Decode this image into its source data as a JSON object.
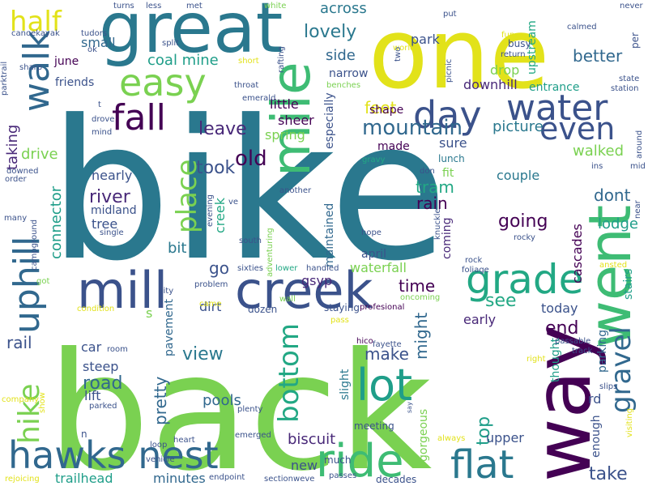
{
  "palette": {
    "yellow": "#e2e21a",
    "lime": "#7ad151",
    "green": "#3ebc74",
    "teal_green": "#22a884",
    "teal": "#1f9e89",
    "blue_teal": "#2a788e",
    "blue": "#31688e",
    "indigo": "#3b528b",
    "purple": "#482878",
    "dark_purple": "#440154",
    "background": "#ffffff"
  },
  "words": [
    {
      "id": "bike",
      "text": "bike",
      "color": "#2a788e"
    },
    {
      "id": "back",
      "text": "back",
      "color": "#7ad151"
    },
    {
      "id": "one",
      "text": "one",
      "color": "#e2e21a"
    },
    {
      "id": "great",
      "text": "great",
      "color": "#2a788e"
    },
    {
      "id": "way",
      "text": "way",
      "color": "#440154"
    },
    {
      "id": "mill",
      "text": "mill",
      "color": "#3b528b"
    },
    {
      "id": "creek",
      "text": "creek",
      "color": "#3b528b"
    },
    {
      "id": "went",
      "text": "went",
      "color": "#3ebc74"
    },
    {
      "id": "mile",
      "text": "mile",
      "color": "#3ebc74"
    },
    {
      "id": "hawks-nest",
      "text": "hawks nest",
      "color": "#31688e"
    },
    {
      "id": "ride",
      "text": "ride",
      "color": "#3ebc74"
    },
    {
      "id": "water",
      "text": "water",
      "color": "#3b528b"
    },
    {
      "id": "day",
      "text": "day",
      "color": "#3b528b"
    },
    {
      "id": "easy",
      "text": "easy",
      "color": "#7ad151"
    },
    {
      "id": "grade",
      "text": "grade",
      "color": "#22a884"
    },
    {
      "id": "lot",
      "text": "lot",
      "color": "#1f9e89"
    },
    {
      "id": "flat",
      "text": "flat",
      "color": "#2a788e"
    },
    {
      "id": "uphill",
      "text": "uphill",
      "color": "#31688e"
    },
    {
      "id": "walk",
      "text": "walk",
      "color": "#31688e"
    },
    {
      "id": "fall",
      "text": "fall",
      "color": "#440154"
    },
    {
      "id": "even",
      "text": "even",
      "color": "#3b528b"
    },
    {
      "id": "half",
      "text": "half",
      "color": "#e2e21a"
    },
    {
      "id": "hike",
      "text": "hike",
      "color": "#7ad151"
    },
    {
      "id": "gravel",
      "text": "gravel",
      "color": "#31688e"
    },
    {
      "id": "bottom",
      "text": "bottom",
      "color": "#22a884"
    },
    {
      "id": "place",
      "text": "place",
      "color": "#7ad151"
    },
    {
      "id": "mountain",
      "text": "mountain",
      "color": "#31688e"
    },
    {
      "id": "going",
      "text": "going",
      "color": "#440154"
    },
    {
      "id": "old",
      "text": "old",
      "color": "#440154"
    },
    {
      "id": "river",
      "text": "river",
      "color": "#482878"
    },
    {
      "id": "leave",
      "text": "leave",
      "color": "#482878"
    },
    {
      "id": "took",
      "text": "took",
      "color": "#3b528b"
    },
    {
      "id": "lovely",
      "text": "lovely",
      "color": "#2a788e"
    },
    {
      "id": "across",
      "text": "across",
      "color": "#2a788e"
    },
    {
      "id": "side",
      "text": "side",
      "color": "#31688e"
    },
    {
      "id": "better",
      "text": "better",
      "color": "#31688e"
    },
    {
      "id": "coal-mine",
      "text": "coal mine",
      "color": "#1f9e89"
    },
    {
      "id": "feet",
      "text": "feet",
      "color": "#e2e21a"
    },
    {
      "id": "picture",
      "text": "picture",
      "color": "#2a788e"
    },
    {
      "id": "walked",
      "text": "walked",
      "color": "#7ad151"
    },
    {
      "id": "dont",
      "text": "dont",
      "color": "#31688e"
    },
    {
      "id": "lodge",
      "text": "lodge",
      "color": "#1f9e89"
    },
    {
      "id": "tram",
      "text": "tram",
      "color": "#22a884"
    },
    {
      "id": "rain",
      "text": "rain",
      "color": "#440154"
    },
    {
      "id": "time",
      "text": "time",
      "color": "#440154"
    },
    {
      "id": "see",
      "text": "see",
      "color": "#22a884"
    },
    {
      "id": "end",
      "text": "end",
      "color": "#440154"
    },
    {
      "id": "make",
      "text": "make",
      "color": "#3b528b"
    },
    {
      "id": "view",
      "text": "view",
      "color": "#2a788e"
    },
    {
      "id": "road",
      "text": "road",
      "color": "#31688e"
    },
    {
      "id": "rail",
      "text": "rail",
      "color": "#3b528b"
    },
    {
      "id": "pretty",
      "text": "pretty",
      "color": "#31688e"
    },
    {
      "id": "biscuit",
      "text": "biscuit",
      "color": "#482878"
    },
    {
      "id": "take",
      "text": "take",
      "color": "#3b528b"
    },
    {
      "id": "top",
      "text": "top",
      "color": "#1f9e89"
    },
    {
      "id": "pools",
      "text": "pools",
      "color": "#31688e"
    },
    {
      "id": "might",
      "text": "might",
      "color": "#31688e"
    },
    {
      "id": "connector",
      "text": "connector",
      "color": "#1f9e89"
    },
    {
      "id": "taking",
      "text": "taking",
      "color": "#482878"
    },
    {
      "id": "drive",
      "text": "drive",
      "color": "#7ad151"
    },
    {
      "id": "walk-small",
      "text": "small",
      "color": "#31688e"
    },
    {
      "id": "june",
      "text": "june",
      "color": "#440154"
    },
    {
      "id": "friends",
      "text": "friends",
      "color": "#3b528b"
    },
    {
      "id": "park",
      "text": "park",
      "color": "#3b528b"
    },
    {
      "id": "narrow",
      "text": "narrow",
      "color": "#3b528b"
    },
    {
      "id": "shape",
      "text": "shape",
      "color": "#440154"
    },
    {
      "id": "drop",
      "text": "drop",
      "color": "#7ad151"
    },
    {
      "id": "downhill",
      "text": "downhill",
      "color": "#482878"
    },
    {
      "id": "entrance",
      "text": "entrance",
      "color": "#1f9e89"
    },
    {
      "id": "upstream",
      "text": "upstream",
      "color": "#22a884"
    },
    {
      "id": "little",
      "text": "little",
      "color": "#440154"
    },
    {
      "id": "sheer",
      "text": "sheer",
      "color": "#440154"
    },
    {
      "id": "spring",
      "text": "spring",
      "color": "#7ad151"
    },
    {
      "id": "made",
      "text": "made",
      "color": "#440154"
    },
    {
      "id": "sure",
      "text": "sure",
      "color": "#3b528b"
    },
    {
      "id": "fit",
      "text": "fit",
      "color": "#7ad151"
    },
    {
      "id": "couple",
      "text": "couple",
      "color": "#2a788e"
    },
    {
      "id": "nearly",
      "text": "nearly",
      "color": "#3b528b"
    },
    {
      "id": "midland",
      "text": "midland",
      "color": "#3b528b"
    },
    {
      "id": "tree",
      "text": "tree",
      "color": "#3b528b"
    },
    {
      "id": "bit",
      "text": "bit",
      "color": "#2a788e"
    },
    {
      "id": "go",
      "text": "go",
      "color": "#3b528b"
    },
    {
      "id": "creek-small",
      "text": "creek",
      "color": "#22a884"
    },
    {
      "id": "dirt",
      "text": "dirt",
      "color": "#3b528b"
    },
    {
      "id": "gsyp",
      "text": "gsyp",
      "color": "#482878"
    },
    {
      "id": "april",
      "text": "april",
      "color": "#3b528b"
    },
    {
      "id": "waterfall",
      "text": "waterfall",
      "color": "#7ad151"
    },
    {
      "id": "coming",
      "text": "coming",
      "color": "#482878"
    },
    {
      "id": "cascades",
      "text": "cascades",
      "color": "#440154"
    },
    {
      "id": "stairs",
      "text": "stairs",
      "color": "#1f9e89"
    },
    {
      "id": "today",
      "text": "today",
      "color": "#3b528b"
    },
    {
      "id": "early",
      "text": "early",
      "color": "#482878"
    },
    {
      "id": "car",
      "text": "car",
      "color": "#3b528b"
    },
    {
      "id": "steep",
      "text": "steep",
      "color": "#3b528b"
    },
    {
      "id": "lift",
      "text": "lift",
      "color": "#3b528b"
    },
    {
      "id": "pavement",
      "text": "pavement",
      "color": "#31688e"
    },
    {
      "id": "thought",
      "text": "thought",
      "color": "#1f9e89"
    },
    {
      "id": "enough",
      "text": "enough",
      "color": "#3b528b"
    },
    {
      "id": "rd",
      "text": "rd",
      "color": "#3b528b"
    },
    {
      "id": "parking",
      "text": "parking",
      "color": "#31688e"
    },
    {
      "id": "trailhead",
      "text": "trailhead",
      "color": "#1f9e89"
    },
    {
      "id": "minutes",
      "text": "minutes",
      "color": "#31688e"
    },
    {
      "id": "new",
      "text": "new",
      "color": "#3b528b"
    },
    {
      "id": "much",
      "text": "much",
      "color": "#3b528b"
    },
    {
      "id": "upper",
      "text": "upper",
      "color": "#3b528b"
    },
    {
      "id": "slight",
      "text": "slight",
      "color": "#2a788e"
    },
    {
      "id": "gorgeous",
      "text": "gorgeous",
      "color": "#7ad151"
    },
    {
      "id": "maintained",
      "text": "maintained",
      "color": "#31688e"
    },
    {
      "id": "especially",
      "text": "especially",
      "color": "#3b528b"
    },
    {
      "id": "lunch",
      "text": "lunch",
      "color": "#2a788e"
    },
    {
      "id": "don",
      "text": "don",
      "color": "#3b528b"
    },
    {
      "id": "gravy",
      "text": "gravy",
      "color": "#22a884"
    },
    {
      "id": "another",
      "text": "another",
      "color": "#3b528b"
    },
    {
      "id": "adventuring",
      "text": "adventuring",
      "color": "#7ad151"
    },
    {
      "id": "sixties",
      "text": "sixties",
      "color": "#3b528b"
    },
    {
      "id": "lower",
      "text": "lower",
      "color": "#22a884"
    },
    {
      "id": "handled",
      "text": "handled",
      "color": "#3b528b"
    },
    {
      "id": "oncoming",
      "text": "oncoming",
      "color": "#7ad151"
    },
    {
      "id": "staying",
      "text": "staying",
      "color": "#3b528b"
    },
    {
      "id": "profesional",
      "text": "profesional",
      "color": "#440154"
    },
    {
      "id": "dozen",
      "text": "dozen",
      "color": "#3b528b"
    },
    {
      "id": "city",
      "text": "city",
      "color": "#3b528b"
    },
    {
      "id": "problem",
      "text": "problem",
      "color": "#3b528b"
    },
    {
      "id": "condition",
      "text": "condition",
      "color": "#e2e21a"
    },
    {
      "id": "room",
      "text": "room",
      "color": "#3b528b"
    },
    {
      "id": "show",
      "text": "show",
      "color": "#e2e21a"
    },
    {
      "id": "company",
      "text": "company",
      "color": "#e2e21a"
    },
    {
      "id": "parked",
      "text": "parked",
      "color": "#3b528b"
    },
    {
      "id": "heart",
      "text": "heart",
      "color": "#3b528b"
    },
    {
      "id": "loop",
      "text": "loop",
      "color": "#3b528b"
    },
    {
      "id": "vehicle",
      "text": "vehicle",
      "color": "#3b528b"
    },
    {
      "id": "rejoicing",
      "text": "rejoicing",
      "color": "#e2e21a"
    },
    {
      "id": "endpoint",
      "text": "endpoint",
      "color": "#3b528b"
    },
    {
      "id": "sectionweve",
      "text": "sectionweve",
      "color": "#3b528b"
    },
    {
      "id": "passes",
      "text": "passes",
      "color": "#3b528b"
    },
    {
      "id": "decades",
      "text": "decades",
      "color": "#3b528b"
    },
    {
      "id": "plenty",
      "text": "plenty",
      "color": "#3b528b"
    },
    {
      "id": "emerged",
      "text": "emerged",
      "color": "#3b528b"
    },
    {
      "id": "meeting",
      "text": "meeting",
      "color": "#3b528b"
    },
    {
      "id": "always",
      "text": "always",
      "color": "#e2e21a"
    },
    {
      "id": "hico",
      "text": "hico",
      "color": "#440154"
    },
    {
      "id": "fayette",
      "text": "fayette",
      "color": "#3b528b"
    },
    {
      "id": "passable",
      "text": "passable",
      "color": "#3b528b"
    },
    {
      "id": "track",
      "text": "track",
      "color": "#3b528b"
    },
    {
      "id": "right",
      "text": "right",
      "color": "#e2e21a"
    },
    {
      "id": "slips",
      "text": "slips",
      "color": "#3b528b"
    },
    {
      "id": "visiting",
      "text": "visiting",
      "color": "#e2e21a"
    },
    {
      "id": "say",
      "text": "say",
      "color": "#3b528b"
    },
    {
      "id": "n",
      "text": "n",
      "color": "#3b528b"
    },
    {
      "id": "pass",
      "text": "pass",
      "color": "#e2e21a"
    },
    {
      "id": "wall",
      "text": "wall",
      "color": "#7ad151"
    },
    {
      "id": "came",
      "text": "came",
      "color": "#e2e21a"
    },
    {
      "id": "got",
      "text": "got",
      "color": "#7ad151"
    },
    {
      "id": "s",
      "text": "s",
      "color": "#7ad151"
    },
    {
      "id": "campground",
      "text": "campground",
      "color": "#3b528b"
    },
    {
      "id": "many",
      "text": "many",
      "color": "#3b528b"
    },
    {
      "id": "single",
      "text": "single",
      "color": "#3b528b"
    },
    {
      "id": "south",
      "text": "south",
      "color": "#3b528b"
    },
    {
      "id": "ve",
      "text": "ve",
      "color": "#3b528b"
    },
    {
      "id": "evening",
      "text": "evening",
      "color": "#3b528b"
    },
    {
      "id": "hope",
      "text": "hope",
      "color": "#3b528b"
    },
    {
      "id": "knuckle",
      "text": "knuckle",
      "color": "#3b528b"
    },
    {
      "id": "rock",
      "text": "rock",
      "color": "#3b528b"
    },
    {
      "id": "foliage",
      "text": "foliage",
      "color": "#3b528b"
    },
    {
      "id": "rocky",
      "text": "rocky",
      "color": "#3b528b"
    },
    {
      "id": "ansted",
      "text": "ansted",
      "color": "#e2e21a"
    },
    {
      "id": "near",
      "text": "near",
      "color": "#3b528b"
    },
    {
      "id": "order",
      "text": "order",
      "color": "#3b528b"
    },
    {
      "id": "downed",
      "text": "downed",
      "color": "#3b528b"
    },
    {
      "id": "drove",
      "text": "drove",
      "color": "#3b528b"
    },
    {
      "id": "mind",
      "text": "mind",
      "color": "#3b528b"
    },
    {
      "id": "t",
      "text": "t",
      "color": "#3b528b"
    },
    {
      "id": "ins",
      "text": "ins",
      "color": "#3b528b"
    },
    {
      "id": "mid",
      "text": "mid",
      "color": "#3b528b"
    },
    {
      "id": "around",
      "text": "around",
      "color": "#3b528b"
    },
    {
      "id": "state",
      "text": "state",
      "color": "#3b528b"
    },
    {
      "id": "station",
      "text": "station",
      "color": "#3b528b"
    },
    {
      "id": "per",
      "text": "per",
      "color": "#3b528b"
    },
    {
      "id": "never",
      "text": "never",
      "color": "#3b528b"
    },
    {
      "id": "calmed",
      "text": "calmed",
      "color": "#3b528b"
    },
    {
      "id": "return",
      "text": "return",
      "color": "#3b528b"
    },
    {
      "id": "busy",
      "text": "busy",
      "color": "#3b528b"
    },
    {
      "id": "fun",
      "text": "fun",
      "color": "#e2e21a"
    },
    {
      "id": "put",
      "text": "put",
      "color": "#3b528b"
    },
    {
      "id": "picnic",
      "text": "picnic",
      "color": "#3b528b"
    },
    {
      "id": "world",
      "text": "world",
      "color": "#e2e21a"
    },
    {
      "id": "two",
      "text": "two",
      "color": "#3b528b"
    },
    {
      "id": "benches",
      "text": "benches",
      "color": "#7ad151"
    },
    {
      "id": "throat",
      "text": "throat",
      "color": "#3b528b"
    },
    {
      "id": "emerald",
      "text": "emerald",
      "color": "#3b528b"
    },
    {
      "id": "rafting",
      "text": "rafting",
      "color": "#3b528b"
    },
    {
      "id": "short",
      "text": "short",
      "color": "#e2e21a"
    },
    {
      "id": "split",
      "text": "split",
      "color": "#3b528b"
    },
    {
      "id": "tudors",
      "text": "tudors",
      "color": "#3b528b"
    },
    {
      "id": "ok",
      "text": "ok",
      "color": "#3b528b"
    },
    {
      "id": "sharp",
      "text": "sharp",
      "color": "#3b528b"
    },
    {
      "id": "parktrail",
      "text": "parktrail",
      "color": "#3b528b"
    },
    {
      "id": "canoekayak",
      "text": "canoekayak",
      "color": "#3b528b"
    },
    {
      "id": "turns",
      "text": "turns",
      "color": "#3b528b"
    },
    {
      "id": "less",
      "text": "less",
      "color": "#3b528b"
    },
    {
      "id": "met",
      "text": "met",
      "color": "#3b528b"
    },
    {
      "id": "white",
      "text": "white",
      "color": "#7ad151"
    }
  ]
}
